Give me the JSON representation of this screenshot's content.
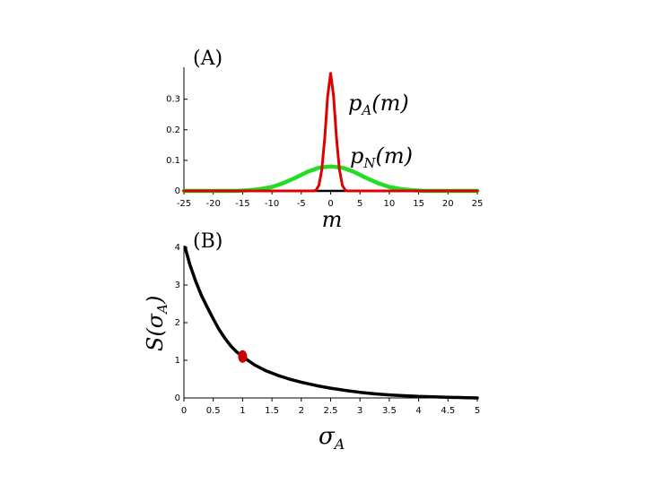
{
  "chart_data": [
    {
      "panel_label": "(A)",
      "type": "line",
      "xlabel": "m",
      "ylabel": "",
      "xlim": [
        -25,
        25
      ],
      "ylim": [
        0,
        0.39
      ],
      "xticks": [
        "-25",
        "-20",
        "-15",
        "-10",
        "-5",
        "0",
        "5",
        "10",
        "15",
        "20",
        "25"
      ],
      "yticks": [
        "0",
        "0.1",
        "0.2",
        "0.3"
      ],
      "grid": false,
      "series": [
        {
          "name": "pA(m)",
          "label_main": "p",
          "label_sub": "A",
          "label_tail": "(m)",
          "color": "#e00000",
          "x": [
            -25,
            -10,
            -5,
            -3,
            -2.5,
            -2,
            -1.5,
            -1,
            -0.5,
            0,
            0.5,
            1,
            1.5,
            2,
            2.5,
            3,
            5,
            10,
            25
          ],
          "y": [
            0,
            0,
            0,
            0,
            0.002,
            0.018,
            0.07,
            0.175,
            0.31,
            0.385,
            0.31,
            0.175,
            0.07,
            0.018,
            0.002,
            0,
            0,
            0,
            0
          ]
        },
        {
          "name": "pN(m)",
          "label_main": "p",
          "label_sub": "N",
          "label_tail": "(m)",
          "color": "#22dd22",
          "x": [
            -25,
            -16,
            -14,
            -12,
            -10,
            -8,
            -6,
            -4,
            -2,
            0,
            2,
            4,
            6,
            8,
            10,
            12,
            14,
            16,
            25
          ],
          "y": [
            0,
            0,
            0.002,
            0.006,
            0.013,
            0.026,
            0.043,
            0.062,
            0.076,
            0.08,
            0.076,
            0.062,
            0.043,
            0.026,
            0.013,
            0.006,
            0.002,
            0,
            0
          ]
        }
      ]
    },
    {
      "panel_label": "(B)",
      "type": "line",
      "xlabel_main": "σ",
      "xlabel_sub": "A",
      "ylabel_main": "S(σ",
      "ylabel_sub": "A",
      "ylabel_tail": ")",
      "xlim": [
        0,
        5
      ],
      "ylim": [
        0,
        4
      ],
      "xticks": [
        "0",
        "0.5",
        "1",
        "1.5",
        "2",
        "2.5",
        "3",
        "3.5",
        "4",
        "4.5",
        "5"
      ],
      "yticks": [
        "0",
        "1",
        "2",
        "3",
        "4"
      ],
      "grid": false,
      "series": [
        {
          "color": "#000000",
          "x": [
            0.02,
            0.1,
            0.2,
            0.3,
            0.4,
            0.5,
            0.6,
            0.7,
            0.8,
            0.9,
            1.0,
            1.2,
            1.4,
            1.6,
            1.8,
            2.0,
            2.25,
            2.5,
            2.75,
            3.0,
            3.25,
            3.5,
            3.75,
            4.0,
            4.25,
            4.5,
            4.75,
            5.0
          ],
          "y": [
            4.0,
            3.55,
            3.1,
            2.72,
            2.4,
            2.1,
            1.82,
            1.58,
            1.38,
            1.22,
            1.1,
            0.88,
            0.72,
            0.6,
            0.5,
            0.42,
            0.33,
            0.26,
            0.2,
            0.15,
            0.11,
            0.08,
            0.06,
            0.04,
            0.03,
            0.02,
            0.01,
            0.0
          ]
        }
      ],
      "highlight_point": {
        "x": 1.0,
        "y": 1.1,
        "color": "#cc0000"
      }
    }
  ]
}
